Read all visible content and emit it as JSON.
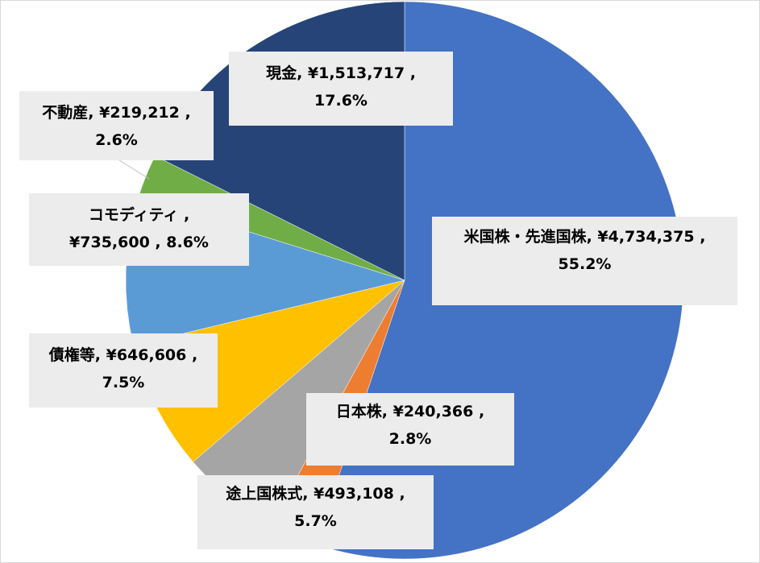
{
  "chart_data": {
    "type": "pie",
    "slices": [
      {
        "category": "米国株・先進国株",
        "amount": 4734375,
        "percent": 55.2,
        "color": "#4472c4",
        "label_line1": "米国株・先進国株, ¥4,734,375 ,",
        "label_line2": "55.2%"
      },
      {
        "category": "日本株",
        "amount": 240366,
        "percent": 2.8,
        "color": "#ed7d31",
        "label_line1": "日本株, ¥240,366 ,",
        "label_line2": "2.8%"
      },
      {
        "category": "途上国株式",
        "amount": 493108,
        "percent": 5.7,
        "color": "#a5a5a5",
        "label_line1": "途上国株式, ¥493,108 ,",
        "label_line2": "5.7%"
      },
      {
        "category": "債権等",
        "amount": 646606,
        "percent": 7.5,
        "color": "#ffc000",
        "label_line1": "債権等, ¥646,606 ,",
        "label_line2": "7.5%"
      },
      {
        "category": "コモディティ",
        "amount": 735600,
        "percent": 8.6,
        "color": "#5b9bd5",
        "label_line1": "コモディティ ,",
        "label_line2": "¥735,600 , 8.6%"
      },
      {
        "category": "不動産",
        "amount": 219212,
        "percent": 2.6,
        "color": "#70ad47",
        "label_line1": "不動産, ¥219,212 ,",
        "label_line2": "2.6%"
      },
      {
        "category": "現金",
        "amount": 1513717,
        "percent": 17.6,
        "color": "#264478",
        "label_line1": "現金, ¥1,513,717 ,",
        "label_line2": "17.6%"
      }
    ]
  }
}
